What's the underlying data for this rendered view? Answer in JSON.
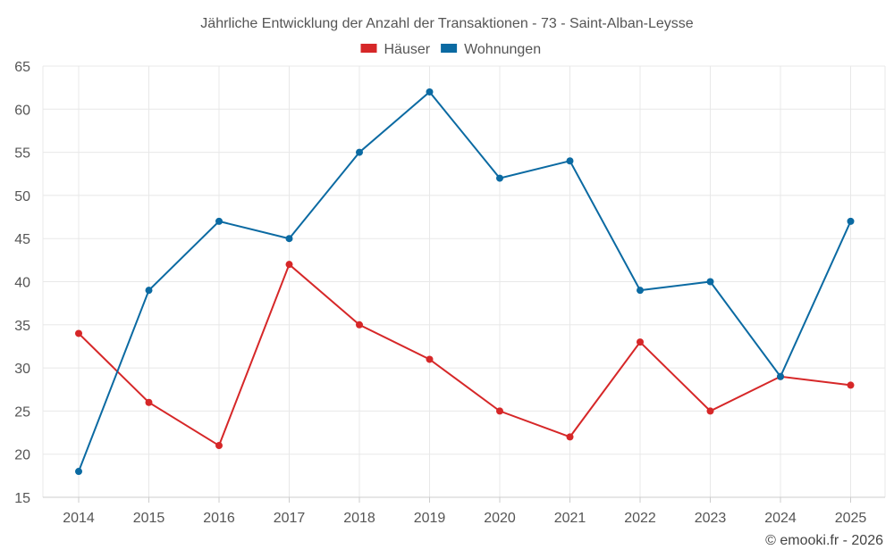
{
  "chart_data": {
    "type": "line",
    "title": "Jährliche Entwicklung der Anzahl der Transaktionen - 73 - Saint-Alban-Leysse",
    "xlabel": "",
    "ylabel": "",
    "categories": [
      "2014",
      "2015",
      "2016",
      "2017",
      "2018",
      "2019",
      "2020",
      "2021",
      "2022",
      "2023",
      "2024",
      "2025"
    ],
    "ylim": [
      15,
      65
    ],
    "yticks": [
      15,
      20,
      25,
      30,
      35,
      40,
      45,
      50,
      55,
      60,
      65
    ],
    "grid": true,
    "legend_position": "top-center",
    "series": [
      {
        "name": "Häuser",
        "color": "#d62728",
        "values": [
          34,
          26,
          21,
          42,
          35,
          31,
          25,
          22,
          33,
          25,
          29,
          28
        ]
      },
      {
        "name": "Wohnungen",
        "color": "#0b6aa2",
        "values": [
          18,
          39,
          47,
          45,
          55,
          62,
          52,
          54,
          39,
          40,
          29,
          47
        ]
      }
    ]
  },
  "footer": {
    "credit": "© emooki.fr - 2026"
  }
}
